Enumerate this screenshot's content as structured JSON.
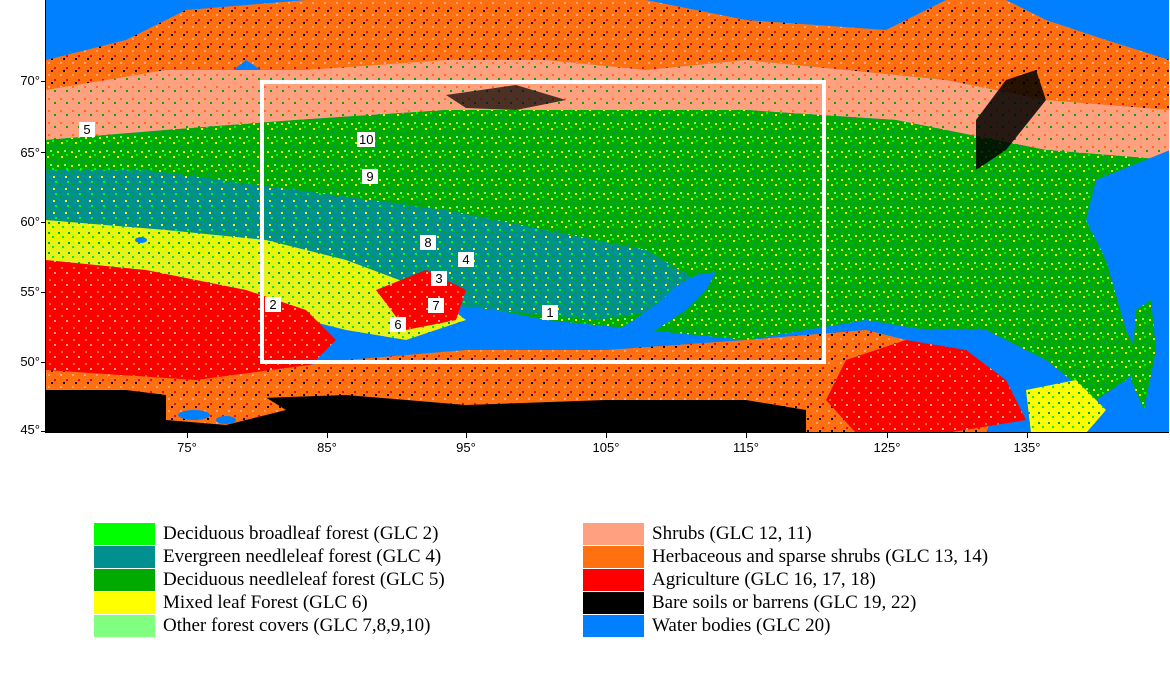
{
  "map": {
    "y_axis_labels": [
      "70°",
      "65°",
      "60°",
      "55°",
      "50°",
      "45°"
    ],
    "x_axis_labels": [
      "75°",
      "85°",
      "95°",
      "105°",
      "115°",
      "125°",
      "135°"
    ],
    "study_area_box_color": "#ffffff",
    "site_labels": [
      "1",
      "2",
      "3",
      "4",
      "5",
      "6",
      "7",
      "8",
      "9",
      "10"
    ]
  },
  "legend": {
    "left_column": [
      {
        "label": "Deciduous broadleaf forest (GLC 2)",
        "color": "#00ff00"
      },
      {
        "label": "Evergreen needleleaf forest (GLC 4)",
        "color": "#009090"
      },
      {
        "label": "Deciduous needleleaf forest (GLC 5)",
        "color": "#00aa00"
      },
      {
        "label": "Mixed leaf Forest (GLC 6)",
        "color": "#ffff00"
      },
      {
        "label": "Other forest covers (GLC 7,8,9,10)",
        "color": "#80ff80"
      }
    ],
    "right_column": [
      {
        "label": "Shrubs (GLC 12, 11)",
        "color": "#ffa080"
      },
      {
        "label": "Herbaceous and sparse shrubs (GLC 13, 14)",
        "color": "#ff7010"
      },
      {
        "label": "Agriculture (GLC 16, 17, 18)",
        "color": "#ff0000"
      },
      {
        "label": "Bare soils or barrens (GLC 19, 22)",
        "color": "#000000"
      },
      {
        "label": "Water bodies (GLC 20)",
        "color": "#0080ff"
      }
    ]
  }
}
